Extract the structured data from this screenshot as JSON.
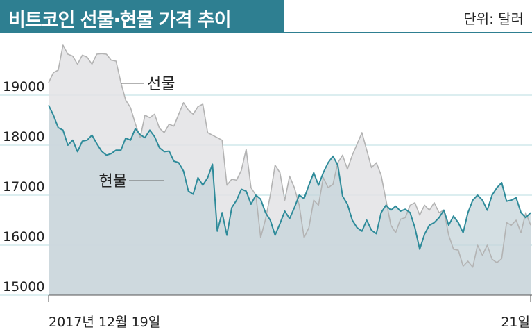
{
  "header": {
    "title": "비트코인 선물·현물 가격 추이",
    "unit": "단위: 달러"
  },
  "colors": {
    "accent": "#2e7f91",
    "spot_line": "#2e8b9a",
    "spot_fill": "#c5d4da",
    "futures_line": "#b3b3b3",
    "futures_fill": "#e3e3e5",
    "grid": "#b9dde2"
  },
  "chart_data": {
    "type": "area",
    "x_start_label": "2017년 12월 19일",
    "x_end_label": "21일",
    "ylim": [
      15000,
      20000
    ],
    "y_ticks": [
      15000,
      16000,
      17000,
      18000,
      19000
    ],
    "grid": true,
    "series": [
      {
        "name": "선물",
        "values": [
          19250,
          19450,
          19500,
          20000,
          19820,
          19780,
          19620,
          19800,
          19760,
          19620,
          19820,
          19830,
          19820,
          19700,
          19680,
          19250,
          18900,
          18750,
          18430,
          18150,
          18600,
          18550,
          18620,
          18340,
          18250,
          18420,
          18380,
          18620,
          18850,
          18700,
          18620,
          18770,
          18820,
          18250,
          18200,
          18150,
          18100,
          17200,
          17320,
          17300,
          17500,
          17920,
          17150,
          17000,
          16150,
          16520,
          17000,
          17600,
          17450,
          16900,
          17380,
          17150,
          16800,
          16150,
          16350,
          16900,
          16800,
          17350,
          17150,
          17220,
          17650,
          17800,
          17520,
          17800,
          18020,
          18250,
          17900,
          17550,
          17650,
          17400,
          16900,
          16400,
          16250,
          16520,
          16550,
          16800,
          16850,
          16600,
          16800,
          16700,
          16850,
          16650,
          16700,
          16200,
          15920,
          15900,
          15580,
          15680,
          15560,
          16000,
          15800,
          16000,
          15720,
          15650,
          15730,
          16450,
          16400,
          16500,
          16250,
          16650,
          16400
        ]
      },
      {
        "name": "현물",
        "values": [
          18800,
          18600,
          18350,
          18300,
          18000,
          18100,
          17870,
          18080,
          18100,
          18200,
          18030,
          17880,
          17800,
          17830,
          17900,
          17900,
          18140,
          18100,
          18330,
          18210,
          18150,
          18300,
          18170,
          17950,
          17870,
          17880,
          17680,
          17650,
          17480,
          17080,
          17020,
          17350,
          17200,
          17350,
          17620,
          16280,
          16650,
          16200,
          16750,
          16900,
          17120,
          17080,
          16820,
          17000,
          16920,
          16650,
          16500,
          16200,
          16430,
          16680,
          16530,
          16750,
          17000,
          16930,
          17200,
          17450,
          17200,
          17450,
          17650,
          17780,
          17600,
          16980,
          16820,
          16500,
          16350,
          16280,
          16500,
          16300,
          16230,
          16650,
          16800,
          16700,
          16780,
          16680,
          16720,
          16650,
          16350,
          15920,
          16220,
          16400,
          16450,
          16550,
          16700,
          16400,
          16580,
          16450,
          16250,
          16650,
          16900,
          17000,
          16900,
          16700,
          17000,
          17150,
          17250,
          16880,
          16900,
          16950,
          16650,
          16550,
          16650
        ]
      }
    ]
  }
}
